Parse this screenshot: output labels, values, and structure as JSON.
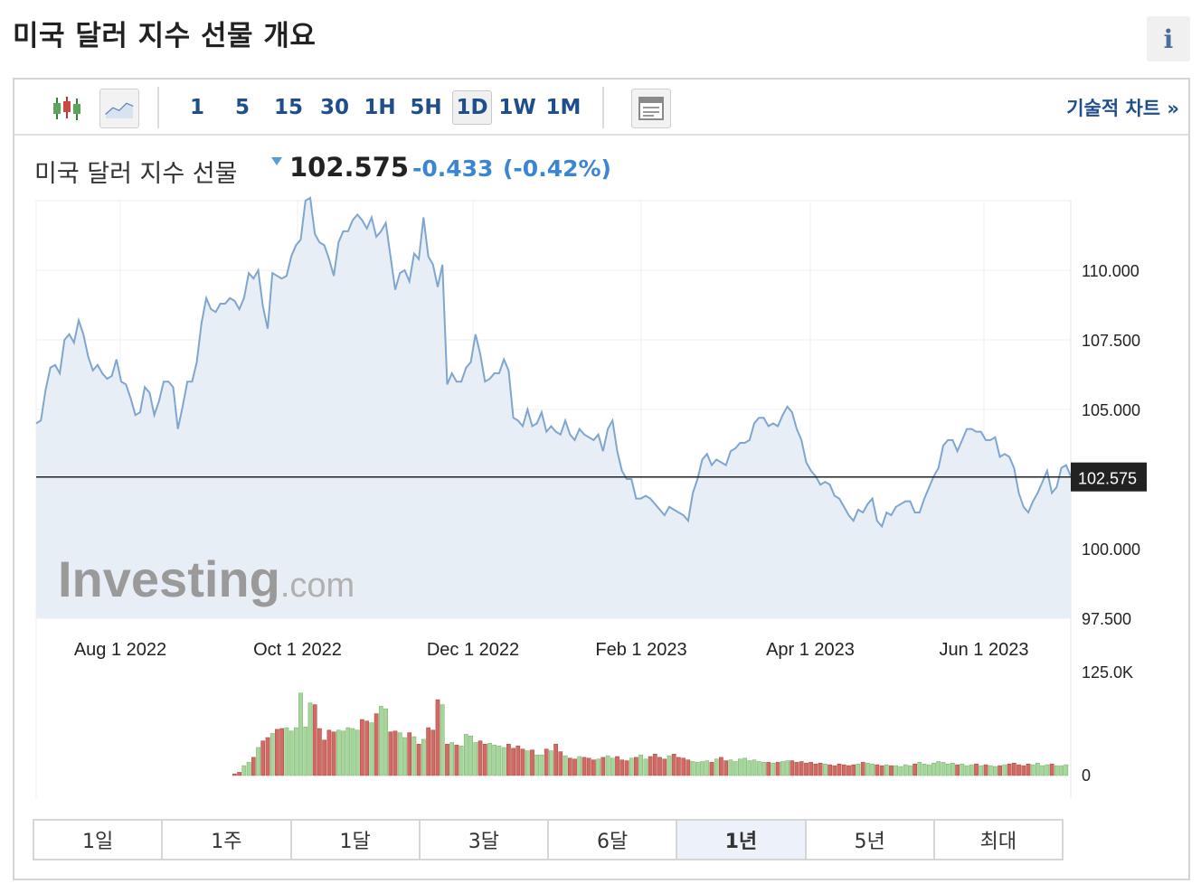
{
  "page": {
    "title": "미국 달러 지수 선물 개요",
    "info_label": "i"
  },
  "toolbar": {
    "intervals": [
      "1",
      "5",
      "15",
      "30",
      "1H",
      "5H",
      "1D",
      "1W",
      "1M"
    ],
    "active_interval": "1D",
    "technical_chart_link": "기술적 차트 »"
  },
  "quote": {
    "name": "미국 달러 지수 선물",
    "price": "102.575",
    "change": "-0.433",
    "change_pct": "(-0.42%)"
  },
  "watermark": {
    "main": "Investing",
    "suffix": ".com"
  },
  "colors": {
    "line": "#7ea6cf",
    "area": "#e8eef6",
    "up": "#a6d69c",
    "down": "#cf6b64",
    "link": "#1f4e8c",
    "change": "#3a86d4"
  },
  "chart_data": {
    "type": "line",
    "x_ticks": [
      "Aug 1 2022",
      "Oct 1 2022",
      "Dec 1 2022",
      "Feb 1 2023",
      "Apr 1 2023",
      "Jun 1 2023"
    ],
    "y_ticks": [
      "110.000",
      "107.500",
      "105.000",
      "100.000",
      "97.500"
    ],
    "ylim": [
      97.5,
      112.5
    ],
    "last_price_label": "102.575",
    "last_price": 102.575,
    "series": [
      {
        "values": [
          104.5,
          104.6,
          105.7,
          106.5,
          106.6,
          106.3,
          107.5,
          107.7,
          107.4,
          108.2,
          107.7,
          106.9,
          106.4,
          106.6,
          106.3,
          106.1,
          106.2,
          106.8,
          106.0,
          105.9,
          105.4,
          104.8,
          104.9,
          105.8,
          105.6,
          104.8,
          105.3,
          106.0,
          106.0,
          105.8,
          104.3,
          105.1,
          106.0,
          106.0,
          106.7,
          108.1,
          109.0,
          108.6,
          108.5,
          108.8,
          108.8,
          109.0,
          108.9,
          108.6,
          109.0,
          109.9,
          109.7,
          110.0,
          108.7,
          107.9,
          109.9,
          109.8,
          109.7,
          109.8,
          110.5,
          110.9,
          111.1,
          112.5,
          112.6,
          111.3,
          111.0,
          110.9,
          110.4,
          109.8,
          111.0,
          111.4,
          111.4,
          111.8,
          112.0,
          111.8,
          111.5,
          111.9,
          111.2,
          111.4,
          111.7,
          110.5,
          109.3,
          109.9,
          110.0,
          109.6,
          110.6,
          110.4,
          111.9,
          110.5,
          110.2,
          109.4,
          110.2,
          105.9,
          106.3,
          106.0,
          106.0,
          106.5,
          106.7,
          107.7,
          107.0,
          106.0,
          106.1,
          106.3,
          106.3,
          106.8,
          106.4,
          104.7,
          104.6,
          104.4,
          105.0,
          104.4,
          104.5,
          104.9,
          104.2,
          104.4,
          104.2,
          104.1,
          104.6,
          104.1,
          103.9,
          104.3,
          104.1,
          104.0,
          103.9,
          104.1,
          103.5,
          104.3,
          104.6,
          103.5,
          102.8,
          102.5,
          102.5,
          101.8,
          101.8,
          101.9,
          101.8,
          101.6,
          101.4,
          101.2,
          101.5,
          101.4,
          101.3,
          101.2,
          101.0,
          102.0,
          102.5,
          103.2,
          103.4,
          103.0,
          103.2,
          103.1,
          103.0,
          103.5,
          103.6,
          103.8,
          103.8,
          103.9,
          104.5,
          104.7,
          104.7,
          104.4,
          104.5,
          104.4,
          104.8,
          105.1,
          104.9,
          104.3,
          103.9,
          103.1,
          102.8,
          102.6,
          102.3,
          102.4,
          102.3,
          101.9,
          101.8,
          101.5,
          101.2,
          101.0,
          101.4,
          101.3,
          101.6,
          101.8,
          101.0,
          100.8,
          101.3,
          101.2,
          101.5,
          101.6,
          101.7,
          101.7,
          101.3,
          101.3,
          101.8,
          102.2,
          102.6,
          102.9,
          103.7,
          103.9,
          103.9,
          103.5,
          103.9,
          104.3,
          104.3,
          104.2,
          104.2,
          103.9,
          103.9,
          104.0,
          103.3,
          103.4,
          103.3,
          102.9,
          102.0,
          101.5,
          101.3,
          101.7,
          102.0,
          102.4,
          102.8,
          102.0,
          102.2,
          102.9,
          103.0,
          102.6
        ]
      }
    ],
    "volume": {
      "ticks": [
        "125.0K",
        "0"
      ],
      "ylim": [
        0,
        125000
      ],
      "values": [
        0,
        0,
        0,
        0,
        0,
        0,
        0,
        0,
        0,
        0,
        0,
        0,
        0,
        0,
        0,
        0,
        0,
        0,
        0,
        0,
        0,
        0,
        0,
        0,
        0,
        0,
        0,
        0,
        0,
        0,
        0,
        0,
        0,
        0,
        0,
        0,
        0,
        0,
        0,
        0,
        0,
        0,
        2000,
        4000,
        12000,
        16000,
        22000,
        34000,
        42000,
        46000,
        51000,
        56000,
        57000,
        58000,
        54000,
        58000,
        100000,
        59000,
        88000,
        86000,
        57000,
        43000,
        55000,
        53000,
        55000,
        54000,
        58000,
        57000,
        55000,
        68000,
        66000,
        64000,
        75000,
        84000,
        81000,
        53000,
        54000,
        52000,
        46000,
        52000,
        47000,
        38000,
        44000,
        58000,
        55000,
        92000,
        86000,
        38000,
        40000,
        37000,
        36000,
        50000,
        48000,
        40000,
        42000,
        38000,
        39000,
        37000,
        36000,
        34000,
        38000,
        33000,
        36000,
        32000,
        30000,
        31000,
        25000,
        25000,
        32000,
        30000,
        38000,
        29000,
        24000,
        21000,
        20000,
        23000,
        22000,
        21000,
        19000,
        20000,
        22000,
        24000,
        21000,
        23000,
        19000,
        18000,
        21000,
        22000,
        25000,
        20000,
        23000,
        26000,
        22000,
        20000,
        24000,
        26000,
        22000,
        21000,
        19000,
        17000,
        16000,
        17000,
        18000,
        16000,
        20000,
        22000,
        18000,
        19000,
        17000,
        20000,
        21000,
        18000,
        19000,
        17000,
        16000,
        16000,
        15000,
        16000,
        17000,
        18000,
        18000,
        16000,
        17000,
        15000,
        16000,
        14000,
        15000,
        14000,
        13000,
        12000,
        14000,
        13000,
        12000,
        13000,
        14000,
        16000,
        15000,
        14000,
        13000,
        12000,
        13000,
        12000,
        12000,
        11000,
        13000,
        12000,
        14000,
        16000,
        14000,
        13000,
        15000,
        17000,
        16000,
        14000,
        15000,
        13000,
        14000,
        12000,
        13000,
        14000,
        12000,
        13000,
        12000,
        11000,
        12000,
        13000,
        14000,
        15000,
        13000,
        12000,
        14000,
        13000,
        15000,
        12000,
        13000,
        14000,
        12000,
        12000,
        13000
      ]
    }
  },
  "ranges": {
    "items": [
      "1일",
      "1주",
      "1달",
      "3달",
      "6달",
      "1년",
      "5년",
      "최대"
    ],
    "active": "1년"
  }
}
